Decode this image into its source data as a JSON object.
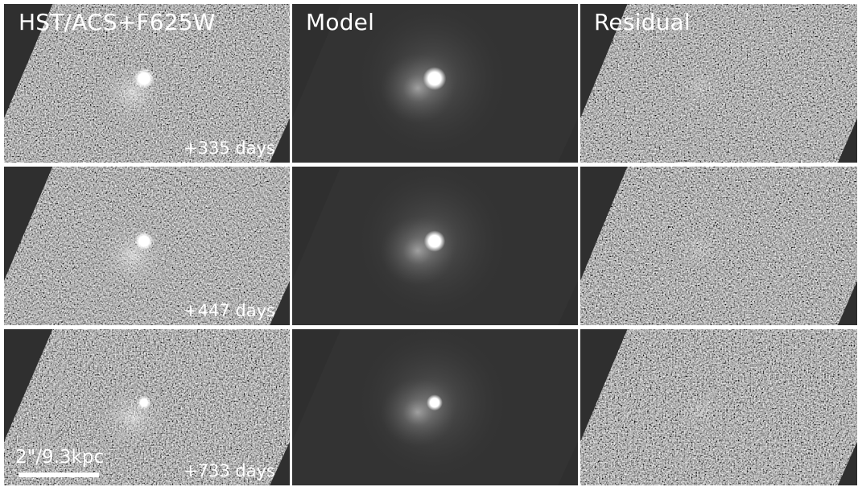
{
  "figure": {
    "columns": [
      {
        "title": "HST/ACS+F625W",
        "kind": "data"
      },
      {
        "title": "Model",
        "kind": "model"
      },
      {
        "title": "Residual",
        "kind": "residual"
      }
    ],
    "rows": [
      {
        "epoch": "+335 days",
        "source_brightness": 1.0
      },
      {
        "epoch": "+447 days",
        "source_brightness": 0.85
      },
      {
        "epoch": "+733 days",
        "source_brightness": 0.45
      }
    ],
    "scalebar": {
      "label": "2\"/9.3kpc"
    },
    "colors": {
      "background": "#2f2f2f",
      "noise_dark": "#151515",
      "noise_light": "#8a8a8a",
      "text": "#ffffff",
      "separator": "#ffffff"
    }
  }
}
